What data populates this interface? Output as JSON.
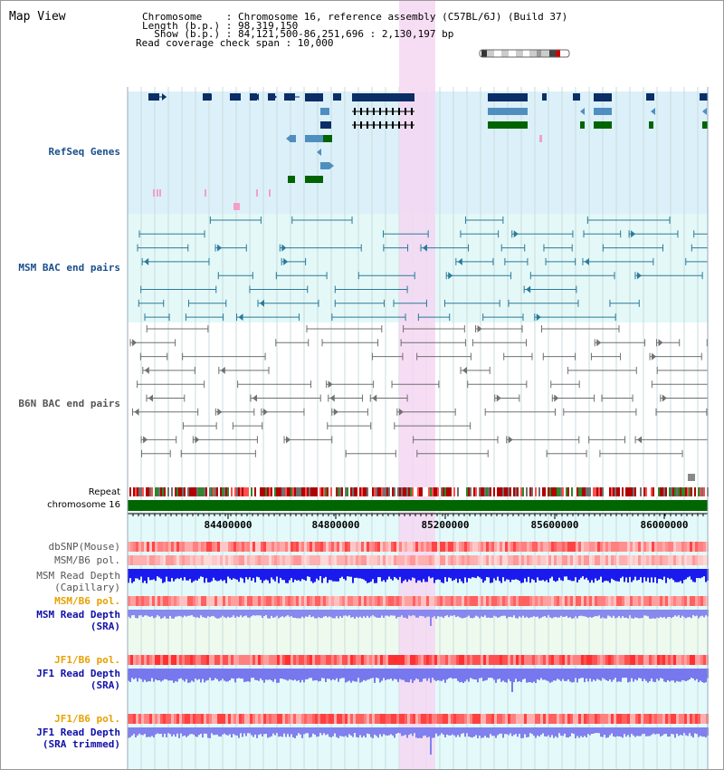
{
  "title": "Map View",
  "info": {
    "chrom_line": "Chromosome    : Chromosome 16, reference assembly (C57BL/6J) (Build 37)",
    "length_line": "Length (b.p.) : 98,319,150",
    "show_line": "  Show (b.p.) : 84,121,500-86,251,696 : 2,130,197 bp",
    "span_line": "Read coverage check span : 10,000"
  },
  "tracks": {
    "refseq": "RefSeq Genes",
    "msm_bac": "MSM BAC end pairs",
    "b6n_bac": "B6N BAC end pairs",
    "repeat": "Repeat",
    "chromosome": "chromosome 16",
    "dbsnp": "dbSNP(Mouse)",
    "msm_pol": "MSM/B6 pol.",
    "msm_depth_cap": "MSM Read Depth\n(Capillary)",
    "msm_pol_sra": "MSM/B6 pol.",
    "msm_depth_sra": "MSM Read Depth\n(SRA)",
    "jf1_pol": "JF1/B6 pol.",
    "jf1_depth_sra": "JF1 Read Depth\n(SRA)",
    "jf1_pol2": "JF1/B6 pol.",
    "jf1_depth_trim": "JF1 Read Depth\n(SRA trimmed)"
  },
  "ruler": {
    "ticks": [
      "84400000",
      "84800000",
      "85200000",
      "85600000",
      "86000000"
    ]
  },
  "colors": {
    "highlight": "#f5d7f2",
    "refseq_bg": "#dcf0fa",
    "msm_bg": "#e4f8f8",
    "depth_bg": "#e4fafa",
    "msm_label": "#1a4f8a",
    "gene_dark": "#0b2e66",
    "gene_mid": "#4f8fbf",
    "gene_green": "#006400",
    "label_orange": "#e8a000",
    "label_blue": "#1010aa"
  }
}
